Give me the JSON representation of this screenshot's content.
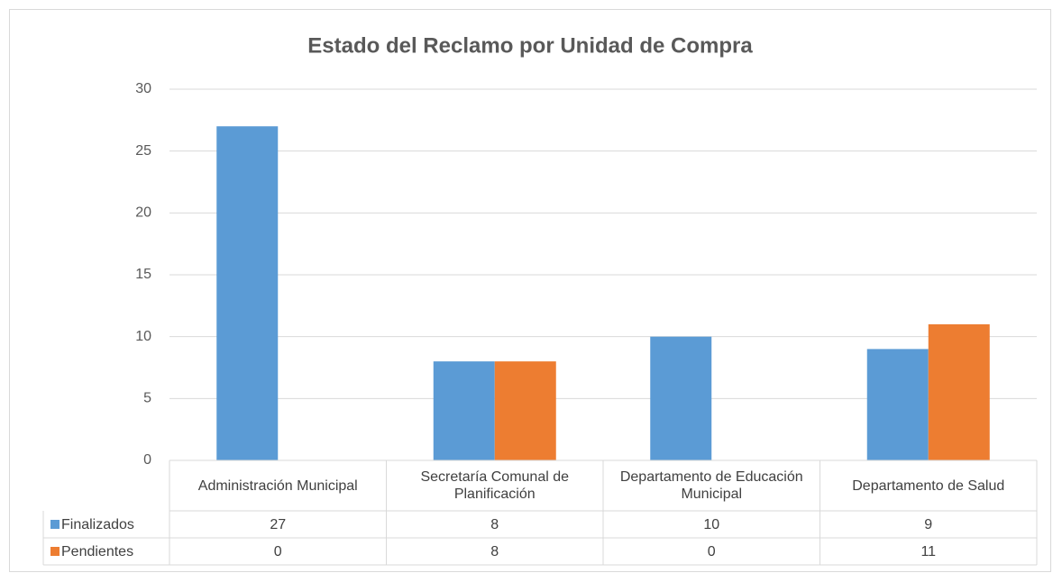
{
  "chart_data": {
    "type": "bar",
    "title": "Estado del Reclamo por Unidad de Compra",
    "categories": [
      "Administración Municipal",
      "Secretaría Comunal de Planificación",
      "Departamento de Educación Municipal",
      "Departamento de Salud"
    ],
    "series": [
      {
        "name": "Finalizados",
        "color": "#5b9bd5",
        "values": [
          27,
          8,
          10,
          9
        ]
      },
      {
        "name": "Pendientes",
        "color": "#ed7d31",
        "values": [
          0,
          8,
          0,
          11
        ]
      }
    ],
    "ylim": [
      0,
      30
    ],
    "yticks": [
      0,
      5,
      10,
      15,
      20,
      25,
      30
    ],
    "grid": true,
    "data_table": true
  }
}
